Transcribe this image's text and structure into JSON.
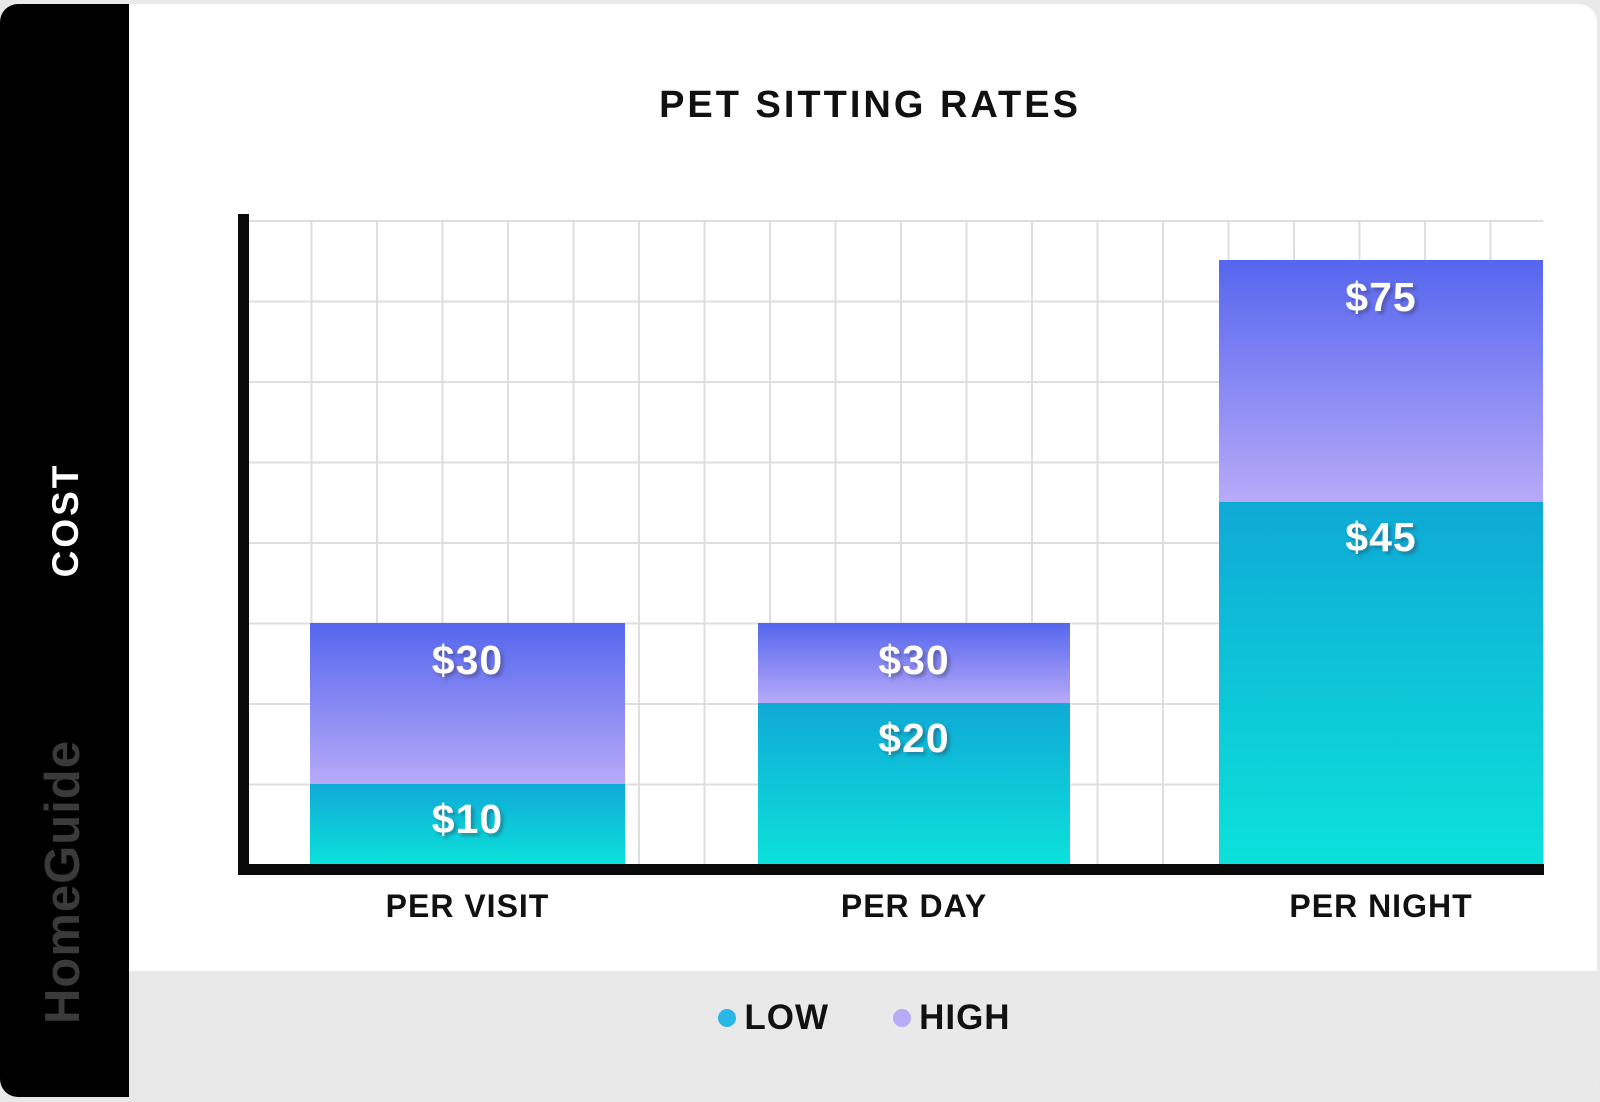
{
  "header": {
    "title": "PET SITTING RATES"
  },
  "sidebar": {
    "cost_label": "COST",
    "brand": "HomeGuide"
  },
  "chart_data": {
    "type": "bar",
    "subtype": "range-stacked",
    "title": "PET SITTING RATES",
    "categories": [
      "PER VISIT",
      "PER DAY",
      "PER NIGHT"
    ],
    "series": [
      {
        "name": "LOW",
        "values": [
          10,
          20,
          45
        ],
        "labels": [
          "$10",
          "$20",
          "$45"
        ],
        "color_top": "#0fa9d6",
        "color_bottom": "#0ce1da"
      },
      {
        "name": "HIGH",
        "values": [
          30,
          30,
          75
        ],
        "labels": [
          "$30",
          "$30",
          "$75"
        ],
        "color_top": "#5566ee",
        "color_bottom": "#b7aaf8"
      }
    ],
    "xlabel": "",
    "ylabel": "COST",
    "ylim": [
      0,
      80
    ],
    "grid": true,
    "gridline_step": 10,
    "legend_position": "bottom"
  },
  "legend": {
    "items": [
      {
        "label": "LOW",
        "color": "#2bb6e9"
      },
      {
        "label": "HIGH",
        "color": "#b7aaf8"
      }
    ]
  },
  "colors": {
    "sidebar_bg": "#000000",
    "card_bg": "#ffffff",
    "footer_bg": "#e9e9e9",
    "axis": "#0a0a0a",
    "grid": "#dedede"
  }
}
